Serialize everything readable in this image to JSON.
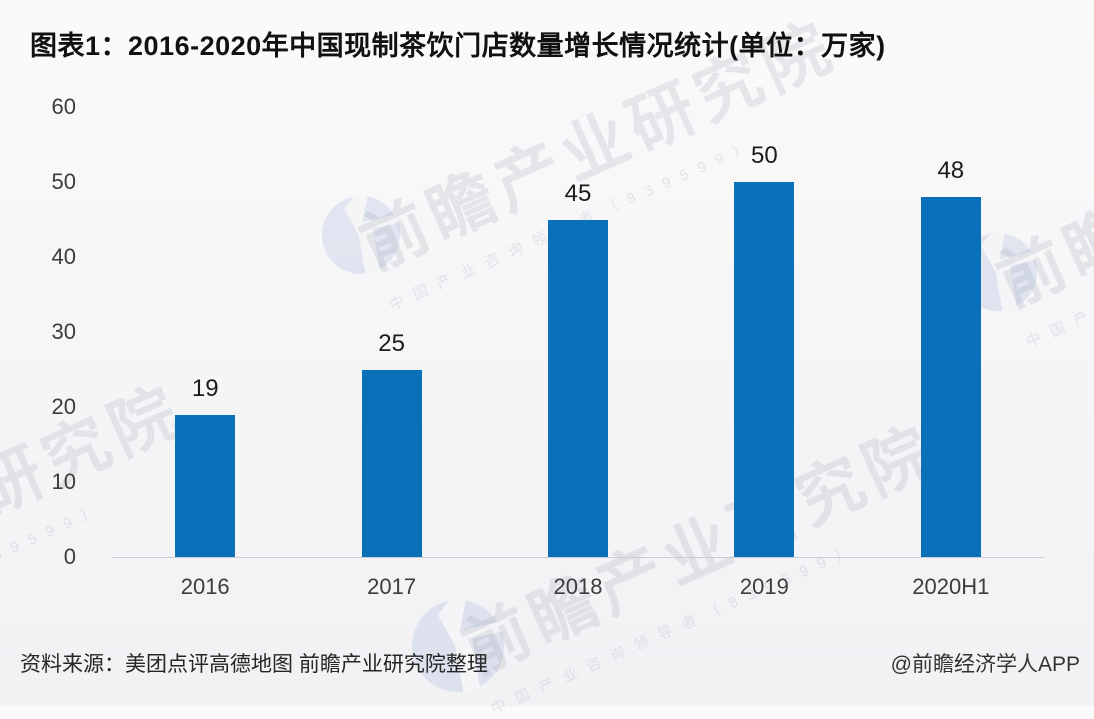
{
  "title": "图表1：2016-2020年中国现制茶饮门店数量增长情况统计(单位：万家)",
  "chart_data": {
    "type": "bar",
    "title": "图表1：2016-2020年中国现制茶饮门店数量增长情况统计(单位：万家)",
    "categories": [
      "2016",
      "2017",
      "2018",
      "2019",
      "2020H1"
    ],
    "values": [
      19,
      25,
      45,
      50,
      48
    ],
    "xlabel": "",
    "ylabel": "",
    "unit": "万家",
    "ylim": [
      0,
      60
    ],
    "yticks": [
      0,
      10,
      20,
      30,
      40,
      50,
      60
    ],
    "grid": false,
    "legend": "none",
    "value_labels": true,
    "bar_color": "#0b70ba"
  },
  "footer": {
    "source": "资料来源：美团点评高德地图 前瞻产业研究院整理",
    "credit": "@前瞻经济学人APP"
  },
  "watermark": {
    "big_text": "前瞻产业研究院",
    "small_text": "中国产业咨询领导者（839599）"
  },
  "colors": {
    "bar": "#0b70ba",
    "axis_line": "#c9ccd1",
    "title_text": "#111111",
    "tick_text": "#3c3c3c",
    "background": "#f5f5f7"
  }
}
